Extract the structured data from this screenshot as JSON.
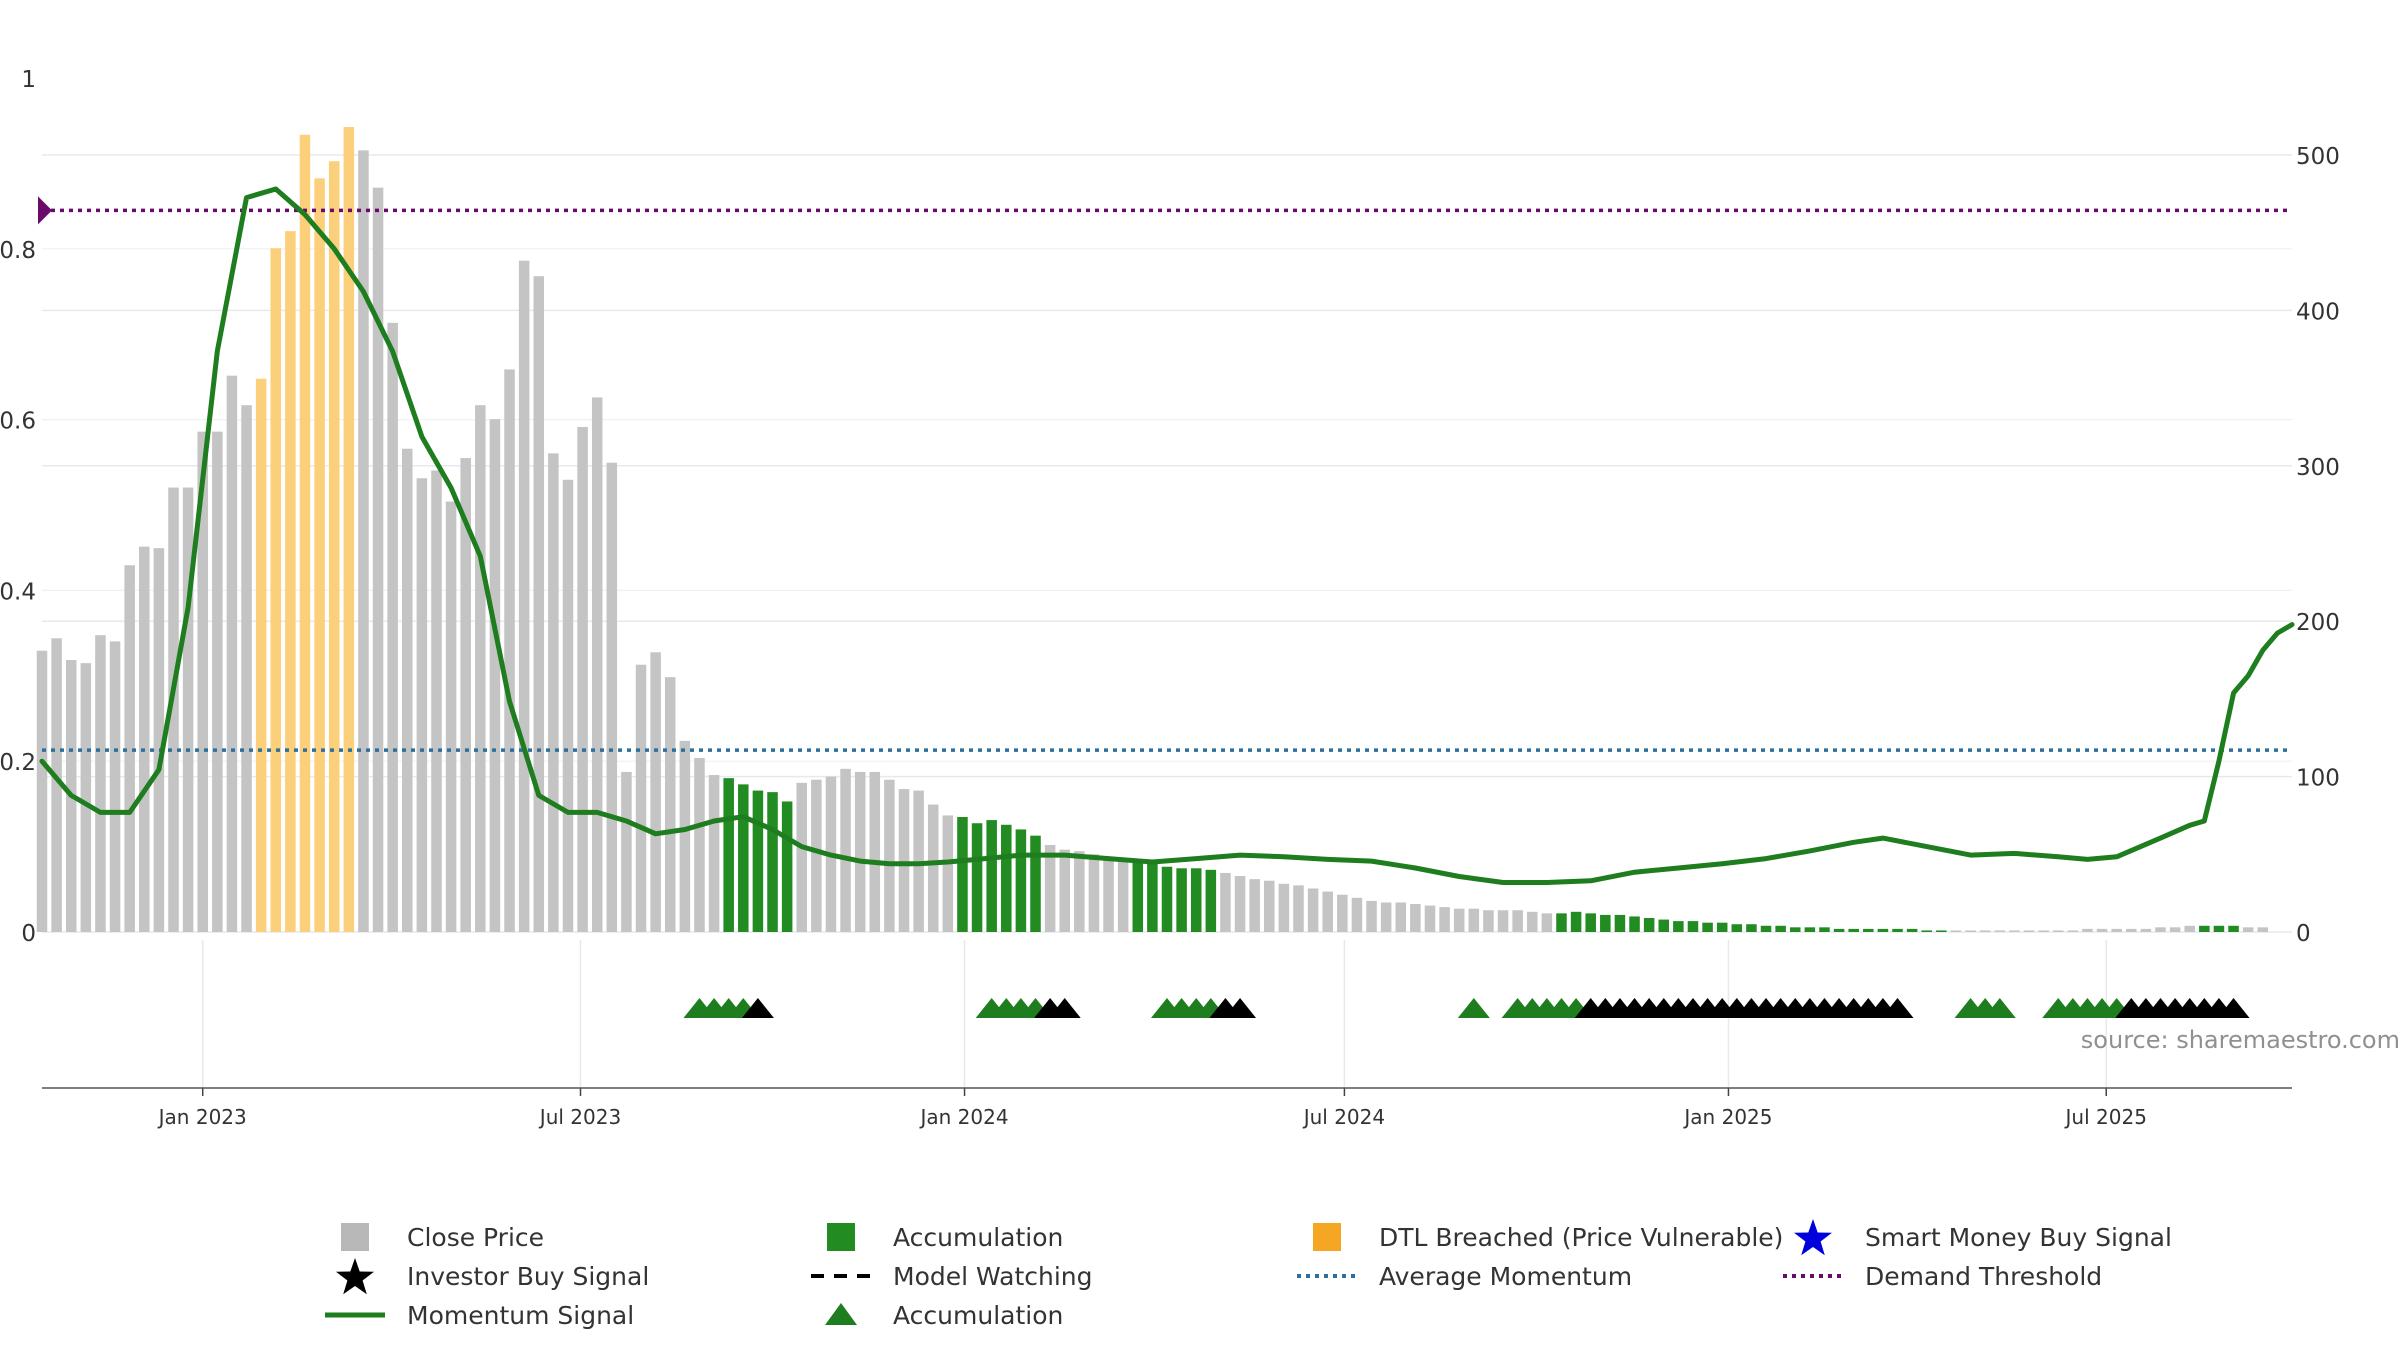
{
  "chart_data": {
    "type": "bar",
    "title": "",
    "xlabel": "",
    "ylabel_left": "",
    "ylabel_right": "",
    "source_note": "source: sharemaestro.com",
    "x_range": [
      "2022-10-16",
      "2025-09-28"
    ],
    "x_ticks": [
      {
        "date": "2023-01-01",
        "label": "Jan 2023"
      },
      {
        "date": "2023-07-01",
        "label": "Jul 2023"
      },
      {
        "date": "2024-01-01",
        "label": "Jan 2024"
      },
      {
        "date": "2024-07-01",
        "label": "Jul 2024"
      },
      {
        "date": "2025-01-01",
        "label": "Jan 2025"
      },
      {
        "date": "2025-07-01",
        "label": "Jul 2025"
      }
    ],
    "left_axis": {
      "range": [
        0,
        1
      ],
      "ticks": [
        "0",
        "0.2",
        "0.4",
        "0.6",
        "0.8",
        "1"
      ]
    },
    "right_axis": {
      "range": [
        0,
        550
      ],
      "ticks": [
        "0",
        "100",
        "200",
        "300",
        "400",
        "500"
      ]
    },
    "grid": true,
    "legend_position": "bottom",
    "legend": [
      {
        "label": "Close Price",
        "symbol": "square",
        "color": "#b8b8b8"
      },
      {
        "label": "Accumulation",
        "symbol": "square",
        "color": "#228B22"
      },
      {
        "label": "DTL Breached (Price Vulnerable)",
        "symbol": "square",
        "color": "#f5a623"
      },
      {
        "label": "Smart Money Buy Signal",
        "symbol": "star",
        "color": "#0000dd"
      },
      {
        "label": "Investor Buy Signal",
        "symbol": "star",
        "color": "#000000"
      },
      {
        "label": "Model Watching",
        "symbol": "dash",
        "color": "#000000"
      },
      {
        "label": "Average Momentum",
        "symbol": "dotted",
        "color": "#2f6f9f"
      },
      {
        "label": "Demand Threshold",
        "symbol": "dotted",
        "color": "#6a0a6a"
      },
      {
        "label": "Momentum Signal",
        "symbol": "line",
        "color": "#1e7d1e"
      },
      {
        "label": "Accumulation",
        "symbol": "triangle",
        "color": "#1e7d1e"
      }
    ],
    "colors": {
      "price": "#c4c4c4",
      "accumulation": "#228B22",
      "dtl": "#fccf7a",
      "momentum": "#1e7d1e",
      "average": "#2f6f9f",
      "threshold": "#6a0a6a",
      "investor": "#000000"
    },
    "reference_lines": {
      "demand_threshold": 0.845,
      "average_momentum": 0.213
    },
    "bars": {
      "start_date": "2022-10-16",
      "interval_days": 7,
      "values": [
        181,
        189,
        175,
        173,
        191,
        187,
        236,
        248,
        247,
        286,
        286,
        322,
        322,
        358,
        339,
        356,
        440,
        451,
        513,
        485,
        496,
        518,
        503,
        479,
        392,
        311,
        292,
        297,
        277,
        305,
        339,
        330,
        362,
        432,
        422,
        308,
        291,
        325,
        344,
        302,
        103,
        172,
        180,
        164,
        123,
        112,
        101,
        99,
        95,
        91,
        90,
        84,
        96,
        98,
        100,
        105,
        103,
        103,
        98,
        92,
        91,
        82,
        75,
        74,
        70,
        72,
        69,
        66,
        62,
        56,
        53,
        52,
        50,
        48,
        47,
        46,
        44,
        42,
        41,
        41,
        40,
        38,
        36,
        34,
        33,
        31,
        30,
        28,
        26,
        24,
        22,
        20,
        19,
        19,
        18,
        17,
        16,
        15,
        15,
        14,
        14,
        14,
        13,
        12,
        12,
        13,
        12,
        11,
        11,
        10,
        9,
        8,
        7,
        7,
        6,
        6,
        5,
        5,
        4,
        4,
        3,
        3,
        3,
        2,
        2,
        2,
        2,
        2,
        2,
        1,
        1,
        1,
        1,
        1,
        1,
        1,
        1,
        1,
        1,
        1,
        2,
        2,
        2,
        2,
        2,
        3,
        3,
        4,
        4,
        4,
        4,
        3,
        3
      ],
      "accumulation_ranges": [
        [
          47,
          51
        ],
        [
          63,
          68
        ],
        [
          75,
          80
        ],
        [
          104,
          115
        ],
        [
          116,
          121
        ],
        [
          122,
          130
        ],
        [
          148,
          150
        ]
      ],
      "dtl_ranges": [
        [
          15,
          21
        ]
      ]
    },
    "momentum_signal": {
      "x": [
        "2022-10-16",
        "2022-10-30",
        "2022-11-13",
        "2022-11-27",
        "2022-12-11",
        "2022-12-25",
        "2023-01-08",
        "2023-01-22",
        "2023-02-05",
        "2023-02-19",
        "2023-03-05",
        "2023-03-19",
        "2023-04-02",
        "2023-04-16",
        "2023-04-30",
        "2023-05-14",
        "2023-05-28",
        "2023-06-11",
        "2023-06-25",
        "2023-07-09",
        "2023-07-23",
        "2023-08-06",
        "2023-08-20",
        "2023-09-03",
        "2023-09-17",
        "2023-10-01",
        "2023-10-15",
        "2023-10-29",
        "2023-11-12",
        "2023-11-26",
        "2023-12-10",
        "2023-12-24",
        "2024-01-07",
        "2024-01-28",
        "2024-02-18",
        "2024-03-10",
        "2024-03-31",
        "2024-04-21",
        "2024-05-12",
        "2024-06-02",
        "2024-06-23",
        "2024-07-14",
        "2024-08-04",
        "2024-08-25",
        "2024-09-15",
        "2024-10-06",
        "2024-10-27",
        "2024-11-17",
        "2024-12-08",
        "2024-12-29",
        "2025-01-19",
        "2025-02-09",
        "2025-03-02",
        "2025-03-16",
        "2025-04-06",
        "2025-04-27",
        "2025-05-18",
        "2025-06-08",
        "2025-06-22",
        "2025-07-06",
        "2025-07-27",
        "2025-08-10",
        "2025-08-17",
        "2025-08-24",
        "2025-08-31",
        "2025-09-07",
        "2025-09-14",
        "2025-09-21",
        "2025-09-28"
      ],
      "y": [
        0.2,
        0.16,
        0.14,
        0.14,
        0.19,
        0.38,
        0.68,
        0.86,
        0.87,
        0.84,
        0.8,
        0.75,
        0.68,
        0.58,
        0.52,
        0.44,
        0.27,
        0.16,
        0.14,
        0.14,
        0.13,
        0.115,
        0.12,
        0.13,
        0.135,
        0.12,
        0.1,
        0.09,
        0.083,
        0.08,
        0.08,
        0.082,
        0.085,
        0.09,
        0.09,
        0.086,
        0.082,
        0.086,
        0.09,
        0.088,
        0.085,
        0.083,
        0.075,
        0.065,
        0.058,
        0.058,
        0.06,
        0.07,
        0.075,
        0.08,
        0.086,
        0.095,
        0.105,
        0.11,
        0.1,
        0.09,
        0.092,
        0.088,
        0.085,
        0.088,
        0.11,
        0.125,
        0.13,
        0.2,
        0.28,
        0.3,
        0.33,
        0.35,
        0.36
      ]
    },
    "accumulation_triangles": [
      "2023-08-27",
      "2023-09-03",
      "2023-09-10",
      "2023-09-17",
      "2024-01-14",
      "2024-01-21",
      "2024-01-28",
      "2024-02-04",
      "2024-04-07",
      "2024-04-14",
      "2024-04-21",
      "2024-04-28",
      "2024-09-01",
      "2024-09-22",
      "2024-09-29",
      "2024-10-06",
      "2024-10-13",
      "2024-10-20",
      "2025-04-27",
      "2025-05-04",
      "2025-05-11",
      "2025-06-08",
      "2025-06-15",
      "2025-06-22",
      "2025-06-29",
      "2025-07-06"
    ],
    "investor_buy_signals": [
      "2023-09-24",
      "2024-02-11",
      "2024-02-18",
      "2024-05-05",
      "2024-05-12",
      "2024-10-27",
      "2024-11-03",
      "2024-11-10",
      "2024-11-17",
      "2024-11-24",
      "2024-12-01",
      "2024-12-08",
      "2024-12-15",
      "2024-12-22",
      "2024-12-29",
      "2025-01-05",
      "2025-01-12",
      "2025-01-19",
      "2025-01-26",
      "2025-02-02",
      "2025-02-09",
      "2025-02-16",
      "2025-02-23",
      "2025-03-02",
      "2025-03-09",
      "2025-03-16",
      "2025-03-23",
      "2025-07-13",
      "2025-07-20",
      "2025-07-27",
      "2025-08-03",
      "2025-08-10",
      "2025-08-17",
      "2025-08-24",
      "2025-08-31"
    ]
  }
}
